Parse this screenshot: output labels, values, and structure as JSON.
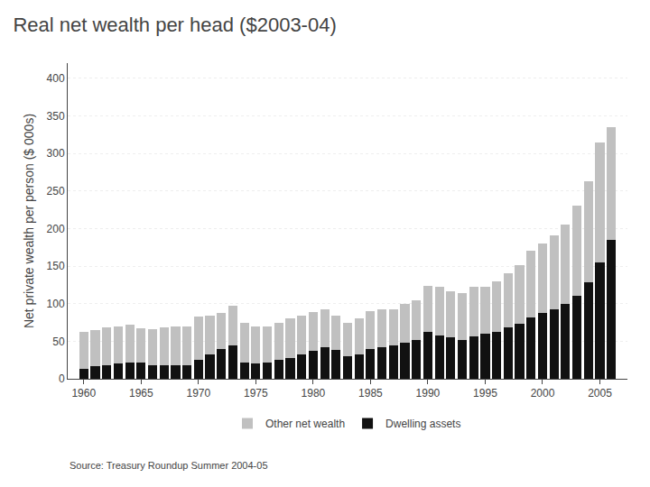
{
  "chart_data": {
    "type": "bar",
    "stacked": true,
    "title": "Real net wealth per head ($2003-04)",
    "ylabel": "Net private wealth per person ($ 000s)",
    "annotations": [
      "Source: Treasury Roundup Summer 2004-05"
    ],
    "x": [
      1960,
      1961,
      1962,
      1963,
      1964,
      1965,
      1966,
      1967,
      1968,
      1969,
      1970,
      1971,
      1972,
      1973,
      1974,
      1975,
      1976,
      1977,
      1978,
      1979,
      1980,
      1981,
      1982,
      1983,
      1984,
      1985,
      1986,
      1987,
      1988,
      1989,
      1990,
      1991,
      1992,
      1993,
      1994,
      1995,
      1996,
      1997,
      1998,
      1999,
      2000,
      2001,
      2002,
      2003,
      2004,
      2005,
      2006
    ],
    "series": [
      {
        "name": "Dwelling assets",
        "color": "#111111",
        "values": [
          13,
          17,
          18,
          20,
          22,
          22,
          18,
          18,
          18,
          18,
          25,
          32,
          40,
          45,
          22,
          20,
          22,
          25,
          28,
          32,
          37,
          42,
          38,
          30,
          33,
          40,
          42,
          44,
          48,
          52,
          62,
          58,
          55,
          52,
          57,
          60,
          62,
          68,
          73,
          82,
          88,
          93,
          100,
          110,
          128,
          155,
          185
        ]
      },
      {
        "name": "Other net wealth",
        "color": "#c0c0c0",
        "values": [
          50,
          48,
          50,
          50,
          50,
          45,
          48,
          50,
          52,
          52,
          58,
          52,
          48,
          52,
          52,
          50,
          48,
          50,
          52,
          52,
          52,
          50,
          46,
          45,
          48,
          50,
          50,
          48,
          52,
          52,
          62,
          65,
          62,
          62,
          65,
          62,
          68,
          72,
          78,
          88,
          92,
          98,
          105,
          120,
          135,
          160,
          150
        ]
      }
    ],
    "xlim": [
      1958.6,
      2007.4
    ],
    "xticks": [
      1960,
      1965,
      1970,
      1975,
      1980,
      1985,
      1990,
      1995,
      2000,
      2005
    ],
    "ylim": [
      0,
      420
    ],
    "yticks": [
      0,
      50,
      100,
      150,
      200,
      250,
      300,
      350,
      400
    ],
    "grid": true,
    "legend": "bottom"
  }
}
